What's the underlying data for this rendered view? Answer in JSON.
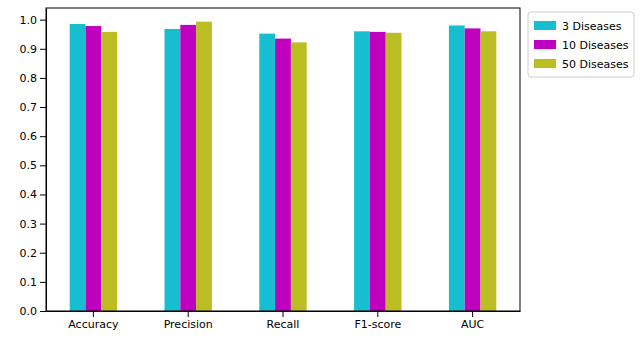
{
  "chart_data": {
    "type": "bar",
    "categories": [
      "Accuracy",
      "Precision",
      "Recall",
      "F1-score",
      "AUC"
    ],
    "series": [
      {
        "name": "3 Diseases",
        "color": "#17becf",
        "values": [
          0.985,
          0.968,
          0.952,
          0.96,
          0.98
        ]
      },
      {
        "name": "10 Diseases",
        "color": "#bf00bf",
        "values": [
          0.978,
          0.982,
          0.935,
          0.958,
          0.97
        ]
      },
      {
        "name": "50 Diseases",
        "color": "#bcbd22",
        "values": [
          0.958,
          0.993,
          0.922,
          0.955,
          0.96
        ]
      }
    ],
    "ylim": [
      0,
      1.04
    ],
    "yticks": [
      {
        "value": 0,
        "label": "0.0"
      },
      0.1,
      0.2,
      0.3,
      0.4,
      0.5,
      0.6,
      0.7,
      0.8,
      0.9,
      {
        "value": 1,
        "label": "1.0"
      }
    ],
    "grid": false,
    "legend": "right"
  }
}
